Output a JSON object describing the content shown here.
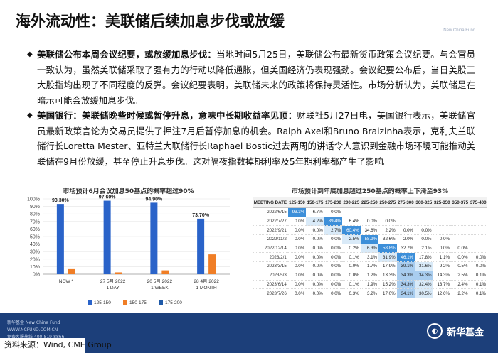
{
  "page": {
    "title": "海外流动性：美联储后续加息步伐或放缓",
    "brand_top": "New China Fund"
  },
  "bullets": [
    {
      "bold": "美联储公布本周会议纪要，或放缓加息步伐：",
      "text": "当地时间5月25日，美联储公布最新货币政策会议纪要。与会官员一致认为，虽然美联储采取了强有力的行动以降低通胀，但美国经济仍表现强劲。会议纪要公布后，当日美股三大股指均出现了不同程度的反弹。会议纪要表明，美联储未来的政策将保持灵活性。市场分析认为，美联储是在暗示可能会放缓加息步伐。"
    },
    {
      "bold": "美国银行：美联储晚些时候或暂停升息，意味中长期收益率见顶：",
      "text": "财联社5月27日电，美国银行表示，美联储官员最新政策言论为交易员提供了押注7月后暂停加息的机会。Ralph Axel和Bruno Braizinha表示，克利夫兰联储行长Loretta Mester、亚特兰大联储行长Raphael Bostic过去两周的讲话令人意识到金融市场环境可能推动美联储在9月份放缓，甚至停止升息步伐。这对隔夜指数掉期利率及5年期利率都产生了影响。"
    }
  ],
  "chart_data": {
    "type": "bar",
    "title": "市场预计6月会议加息50基点的概率超过90%",
    "categories": [
      "NOW *",
      "27 5月 2022\n1 DAY",
      "20 5月 2022\n1 WEEK",
      "28 4月 2022\n1 MONTH"
    ],
    "category_lines": [
      [
        "NOW *"
      ],
      [
        "27 5月 2022",
        "1 DAY"
      ],
      [
        "20 5月 2022",
        "1 WEEK"
      ],
      [
        "28 4月 2022",
        "1 MONTH"
      ]
    ],
    "series": [
      {
        "name": "125-150",
        "values": [
          93.3,
          97.6,
          94.9,
          73.7
        ],
        "color": "#2a63c9"
      },
      {
        "name": "150-175",
        "values": [
          6.7,
          2.4,
          5.1,
          26.3
        ],
        "color": "#f07e26"
      },
      {
        "name": "175-200",
        "values": [
          0,
          0,
          0,
          0
        ],
        "color": "#1f5aa8"
      }
    ],
    "data_labels": [
      "93.30%",
      "97.60%",
      "94.90%",
      "73.70%"
    ],
    "ylim": [
      0,
      100
    ],
    "yticks": [
      "0%",
      "10%",
      "20%",
      "30%",
      "40%",
      "50%",
      "60%",
      "70%",
      "80%",
      "90%",
      "100%"
    ],
    "legend": "bottom"
  },
  "table": {
    "title": "市场预计到年底加息超过250基点的概率上下滑至93%",
    "headers": [
      "MEETING DATE",
      "125-150",
      "150-175",
      "175-200",
      "200-225",
      "225-250",
      "250-275",
      "275-300",
      "300-325",
      "325-350",
      "350-375",
      "375-400"
    ],
    "rows": [
      [
        "2022/6/15",
        "93.3%",
        "6.7%",
        "0.0%",
        "",
        "",
        "",
        "",
        "",
        "",
        "",
        ""
      ],
      [
        "2022/7/27",
        "0.0%",
        "4.2%",
        "89.4%",
        "6.4%",
        "0.0%",
        "0.0%",
        "",
        "",
        "",
        "",
        ""
      ],
      [
        "2022/9/21",
        "0.0%",
        "0.0%",
        "2.7%",
        "60.4%",
        "34.6%",
        "2.2%",
        "0.0%",
        "0.0%",
        "",
        "",
        ""
      ],
      [
        "2022/11/2",
        "0.0%",
        "0.0%",
        "0.0%",
        "2.5%",
        "58.9%",
        "32.6%",
        "2.0%",
        "0.0%",
        "0.0%",
        "",
        ""
      ],
      [
        "2022/12/14",
        "0.0%",
        "0.0%",
        "0.0%",
        "0.2%",
        "6.3%",
        "58.8%",
        "32.7%",
        "2.1%",
        "0.0%",
        "0.0%",
        ""
      ],
      [
        "2023/2/1",
        "0.0%",
        "0.0%",
        "0.0%",
        "0.1%",
        "3.1%",
        "31.9%",
        "46.1%",
        "17.8%",
        "1.1%",
        "0.0%",
        "0.0%"
      ],
      [
        "2023/3/15",
        "0.0%",
        "0.0%",
        "0.0%",
        "0.0%",
        "1.7%",
        "17.9%",
        "39.1%",
        "31.6%",
        "9.2%",
        "0.5%",
        "0.0%"
      ],
      [
        "2023/5/3",
        "0.0%",
        "0.0%",
        "0.0%",
        "0.0%",
        "1.2%",
        "13.3%",
        "34.3%",
        "34.3%",
        "14.3%",
        "2.5%",
        "0.1%"
      ],
      [
        "2023/6/14",
        "0.0%",
        "0.0%",
        "0.0%",
        "0.1%",
        "1.9%",
        "15.2%",
        "34.3%",
        "32.4%",
        "13.7%",
        "2.4%",
        "0.1%"
      ],
      [
        "2023/7/26",
        "0.0%",
        "0.0%",
        "0.0%",
        "0.3%",
        "3.2%",
        "17.0%",
        "34.1%",
        "30.5%",
        "12.6%",
        "2.2%",
        "0.1%"
      ]
    ],
    "highlight": {
      "hi": [
        [
          0,
          1
        ],
        [
          1,
          3
        ],
        [
          2,
          4
        ],
        [
          3,
          5
        ],
        [
          4,
          6
        ],
        [
          5,
          7
        ]
      ],
      "mid": [
        [
          6,
          7
        ],
        [
          7,
          7
        ],
        [
          7,
          8
        ],
        [
          8,
          7
        ],
        [
          9,
          7
        ]
      ],
      "lo": [
        [
          1,
          2
        ],
        [
          2,
          3
        ],
        [
          3,
          4
        ],
        [
          4,
          5
        ],
        [
          5,
          6
        ],
        [
          6,
          8
        ],
        [
          8,
          8
        ],
        [
          9,
          8
        ]
      ]
    }
  },
  "footer": {
    "left_line1": "新华基金 New China Fund",
    "left_line2": "WWW.NCFUND.COM.CN",
    "left_line3": "免费客服热线 400-819-8866",
    "logo_text": "新华基金",
    "source": "资料来源：Wind, CME Group"
  }
}
